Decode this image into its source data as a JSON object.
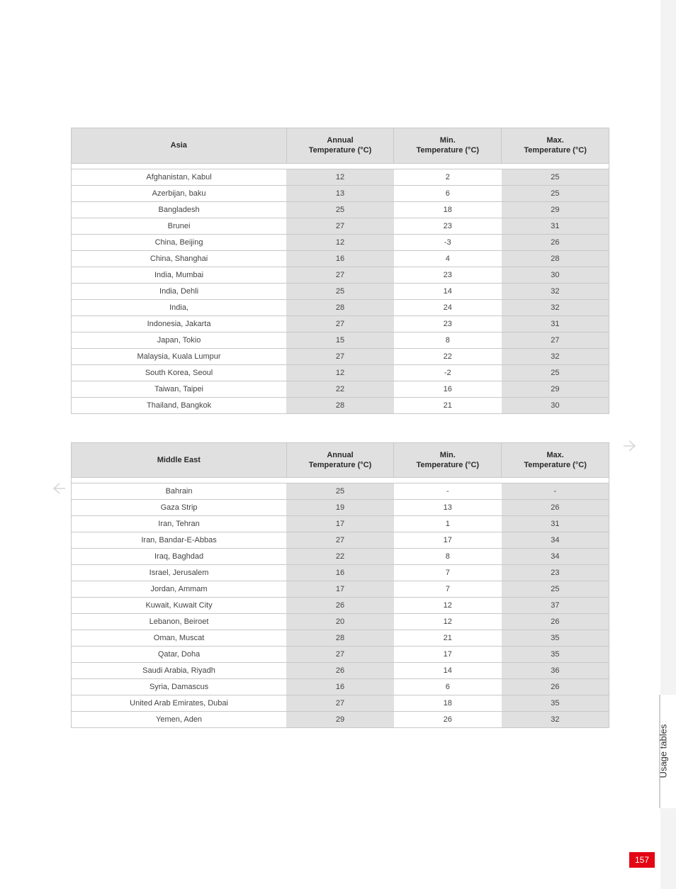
{
  "side_tab": "Usage tables",
  "page_number": "157",
  "tables": [
    {
      "title": "Asia",
      "headers": [
        "Asia",
        "Annual\nTemperature (°C)",
        "Min.\nTemperature (°C)",
        "Max.\nTemperature (°C)"
      ],
      "rows": [
        [
          "Afghanistan, Kabul",
          "12",
          "2",
          "25"
        ],
        [
          "Azerbijan, baku",
          "13",
          "6",
          "25"
        ],
        [
          "Bangladesh",
          "25",
          "18",
          "29"
        ],
        [
          "Brunei",
          "27",
          "23",
          "31"
        ],
        [
          "China, Beijing",
          "12",
          "-3",
          "26"
        ],
        [
          "China, Shanghai",
          "16",
          "4",
          "28"
        ],
        [
          "India, Mumbai",
          "27",
          "23",
          "30"
        ],
        [
          "India, Dehli",
          "25",
          "14",
          "32"
        ],
        [
          "India,",
          "28",
          "24",
          "32"
        ],
        [
          "Indonesia, Jakarta",
          "27",
          "23",
          "31"
        ],
        [
          "Japan, Tokio",
          "15",
          "8",
          "27"
        ],
        [
          "Malaysia, Kuala Lumpur",
          "27",
          "22",
          "32"
        ],
        [
          "South Korea, Seoul",
          "12",
          "-2",
          "25"
        ],
        [
          "Taiwan, Taipei",
          "22",
          "16",
          "29"
        ],
        [
          "Thailand, Bangkok",
          "28",
          "21",
          "30"
        ]
      ]
    },
    {
      "title": "Middle East",
      "headers": [
        "Middle East",
        "Annual\nTemperature (°C)",
        "Min.\nTemperature (°C)",
        "Max.\nTemperature (°C)"
      ],
      "rows": [
        [
          "Bahrain",
          "25",
          "-",
          "-"
        ],
        [
          "Gaza Strip",
          "19",
          "13",
          "26"
        ],
        [
          "Iran, Tehran",
          "17",
          "1",
          "31"
        ],
        [
          "Iran, Bandar-E-Abbas",
          "27",
          "17",
          "34"
        ],
        [
          "Iraq, Baghdad",
          "22",
          "8",
          "34"
        ],
        [
          "Israel, Jerusalem",
          "16",
          "7",
          "23"
        ],
        [
          "Jordan, Ammam",
          "17",
          "7",
          "25"
        ],
        [
          "Kuwait, Kuwait City",
          "26",
          "12",
          "37"
        ],
        [
          "Lebanon, Beiroet",
          "20",
          "12",
          "26"
        ],
        [
          "Oman, Muscat",
          "28",
          "21",
          "35"
        ],
        [
          "Qatar, Doha",
          "27",
          "17",
          "35"
        ],
        [
          "Saudi Arabia, Riyadh",
          "26",
          "14",
          "36"
        ],
        [
          "Syria, Damascus",
          "16",
          "6",
          "26"
        ],
        [
          "United Arab Emirates, Dubai",
          "27",
          "18",
          "35"
        ],
        [
          "Yemen, Aden",
          "29",
          "26",
          "32"
        ]
      ]
    }
  ]
}
